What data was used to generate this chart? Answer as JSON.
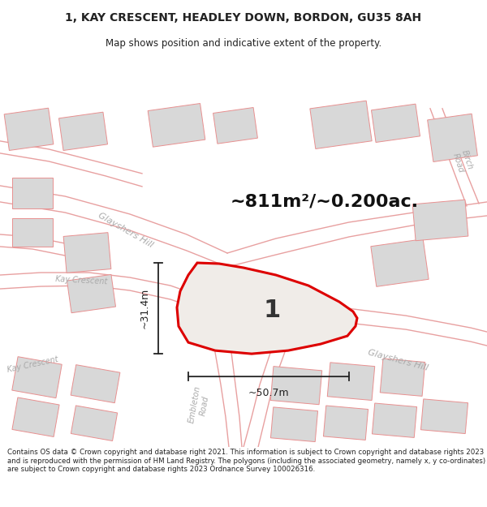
{
  "title_line1": "1, KAY CRESCENT, HEADLEY DOWN, BORDON, GU35 8AH",
  "title_line2": "Map shows position and indicative extent of the property.",
  "area_text": "~811m²/~0.200ac.",
  "label_number": "1",
  "dim_horizontal": "~50.7m",
  "dim_vertical": "~31.4m",
  "footer_text": "Contains OS data © Crown copyright and database right 2021. This information is subject to Crown copyright and database rights 2023 and is reproduced with the permission of HM Land Registry. The polygons (including the associated geometry, namely x, y co-ordinates) are subject to Crown copyright and database rights 2023 Ordnance Survey 100026316.",
  "map_bg": "#ffffff",
  "road_edge_color": "#e8a0a0",
  "road_fill": "#ffffff",
  "building_fill": "#d8d8d8",
  "building_edge": "#e89090",
  "boundary_color": "#dd0000",
  "text_color": "#222222",
  "road_label_color": "#aaaaaa",
  "dim_color": "#222222"
}
